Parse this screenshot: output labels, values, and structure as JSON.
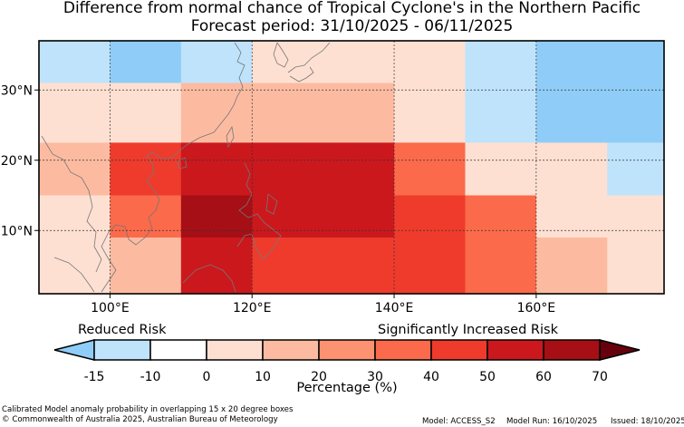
{
  "title": {
    "line1": "Difference from normal chance of Tropical Cyclone's in the Northern Pacific",
    "line2": "Forecast period: 31/10/2025 - 06/11/2025"
  },
  "map_extent": {
    "lon": [
      90,
      178
    ],
    "lat": [
      1,
      37
    ]
  },
  "axes": {
    "lon_ticks": [
      {
        "value": 100,
        "label": "100°E"
      },
      {
        "value": 120,
        "label": "120°E"
      },
      {
        "value": 140,
        "label": "140°E"
      },
      {
        "value": 160,
        "label": "160°E"
      }
    ],
    "lat_ticks": [
      {
        "value": 10,
        "label": "10°N"
      },
      {
        "value": 20,
        "label": "20°N"
      },
      {
        "value": 30,
        "label": "30°N"
      }
    ]
  },
  "grid": {
    "lon_edges": [
      90,
      100,
      110,
      120,
      130,
      140,
      150,
      160,
      170,
      178
    ],
    "lat_edges": [
      37,
      31,
      22.5,
      15,
      9,
      1
    ],
    "values": [
      [
        -15,
        -20,
        -15,
        0,
        0,
        5,
        -15,
        -20,
        -20
      ],
      [
        5,
        5,
        15,
        15,
        15,
        5,
        -15,
        -20,
        -20
      ],
      [
        15,
        40,
        55,
        55,
        50,
        35,
        5,
        0,
        -15
      ],
      [
        5,
        35,
        65,
        55,
        50,
        40,
        35,
        5,
        0
      ],
      [
        0,
        15,
        55,
        45,
        40,
        40,
        35,
        15,
        5
      ]
    ]
  },
  "colorbar": {
    "ticks": [
      "-15",
      "-10",
      "0",
      "10",
      "20",
      "30",
      "40",
      "50",
      "60",
      "70"
    ],
    "bins": [
      {
        "from": -15,
        "to": -10,
        "color": "#bfe3fb"
      },
      {
        "from": -10,
        "to": 0,
        "color": "#ffffff"
      },
      {
        "from": 0,
        "to": 10,
        "color": "#fee0d2"
      },
      {
        "from": 10,
        "to": 20,
        "color": "#fcbba1"
      },
      {
        "from": 20,
        "to": 30,
        "color": "#fc9272"
      },
      {
        "from": 30,
        "to": 40,
        "color": "#fb6a4a"
      },
      {
        "from": 40,
        "to": 50,
        "color": "#ef3b2c"
      },
      {
        "from": 50,
        "to": 60,
        "color": "#cb181d"
      },
      {
        "from": 60,
        "to": 70,
        "color": "#a50f15"
      }
    ],
    "under_color": "#8fcdf8",
    "over_color": "#67000d",
    "label": "Percentage (%)"
  },
  "labels": {
    "reduced": "Reduced Risk",
    "increased": "Significantly Increased Risk"
  },
  "footer": {
    "line1": "Calibrated Model anomaly probability in overlapping 15 x 20 degree boxes",
    "line2": "© Commonwealth of Australia 2025, Australian Bureau of Meteorology",
    "model": "Model: ACCESS_S2",
    "model_run": "Model Run: 16/10/2025",
    "issued": "Issued: 18/10/2025"
  }
}
